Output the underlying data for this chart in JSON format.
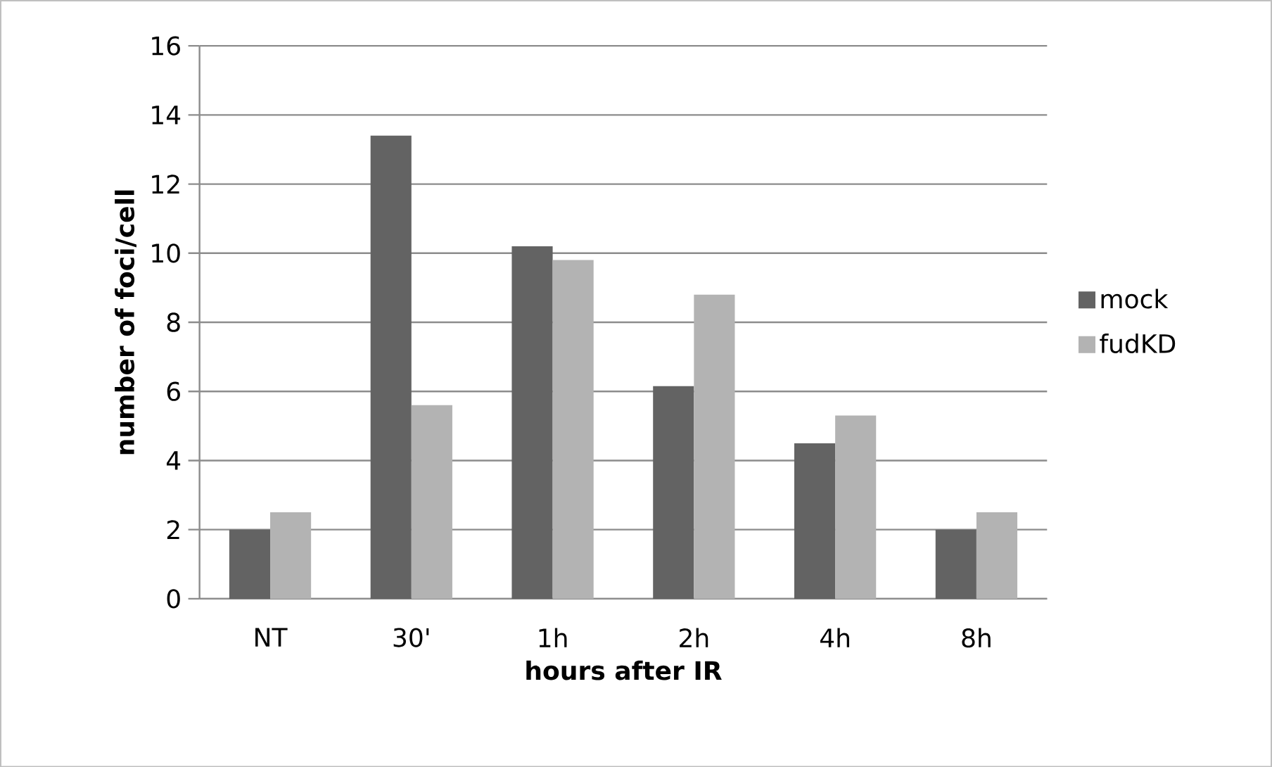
{
  "chart_data": {
    "type": "bar",
    "xlabel": "hours after IR",
    "ylabel": "number of foci/cell",
    "categories": [
      "NT",
      "30'",
      "1h",
      "2h",
      "4h",
      "8h"
    ],
    "series": [
      {
        "name": "mock",
        "color": "#636363",
        "values": [
          2,
          13.4,
          10.2,
          6.15,
          4.5,
          2
        ]
      },
      {
        "name": "fudKD",
        "color": "#b3b3b3",
        "values": [
          2.5,
          5.6,
          9.8,
          8.8,
          5.3,
          2.5
        ]
      }
    ],
    "ylim": [
      0,
      16
    ],
    "yticks": [
      0,
      2,
      4,
      6,
      8,
      10,
      12,
      14,
      16
    ],
    "grid": "y",
    "legend": "right"
  }
}
